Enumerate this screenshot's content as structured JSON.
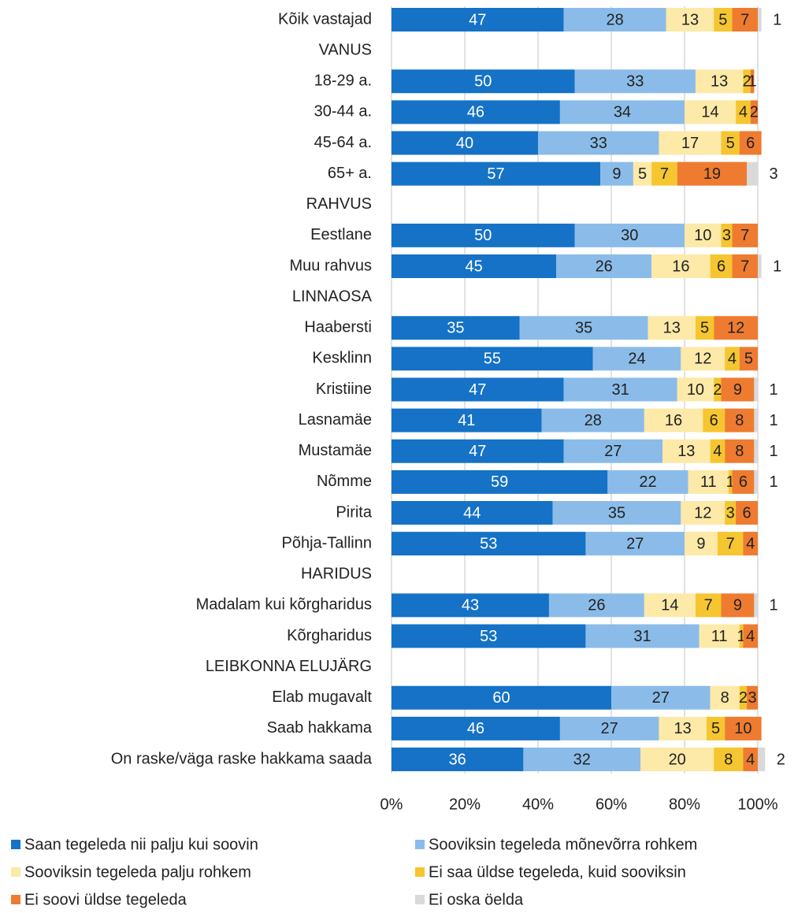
{
  "chart_data": {
    "type": "stacked_bar_horizontal",
    "categories": [
      "Kõik vastajad",
      "VANUS",
      "18-29 a.",
      "30-44 a.",
      "45-64 a.",
      "65+ a.",
      "RAHVUS",
      "Eestlane",
      "Muu rahvus",
      "LINNAOSA",
      "Haabersti",
      "Kesklinn",
      "Kristiine",
      "Lasnamäe",
      "Mustamäe",
      "Nõmme",
      "Pirita",
      "Põhja-Tallinn",
      "HARIDUS",
      "Madalam kui kõrgharidus",
      "Kõrgharidus",
      "LEIBKONNA ELUJÄRG",
      "Elab mugavalt",
      "Saab hakkama",
      "On raske/väga raske hakkama saada"
    ],
    "series": [
      {
        "name": "Saan tegeleda nii palju kui soovin",
        "color": "#1572c6",
        "values": [
          47,
          null,
          50,
          46,
          40,
          57,
          null,
          50,
          45,
          null,
          35,
          55,
          47,
          41,
          47,
          59,
          44,
          53,
          null,
          43,
          53,
          null,
          60,
          46,
          36
        ]
      },
      {
        "name": "Sooviksin tegeleda mõnevõrra rohkem",
        "color": "#8bbce9",
        "values": [
          28,
          null,
          33,
          34,
          33,
          9,
          null,
          30,
          26,
          null,
          35,
          24,
          31,
          28,
          27,
          22,
          35,
          27,
          null,
          26,
          31,
          null,
          27,
          27,
          32
        ]
      },
      {
        "name": "Sooviksin tegeleda palju rohkem",
        "color": "#fde9a8",
        "values": [
          13,
          null,
          13,
          14,
          17,
          5,
          null,
          10,
          16,
          null,
          13,
          12,
          10,
          16,
          13,
          11,
          12,
          9,
          null,
          14,
          11,
          null,
          8,
          13,
          20
        ]
      },
      {
        "name": "Ei saa üldse tegeleda, kuid sooviksin",
        "color": "#f5c630",
        "values": [
          5,
          null,
          2,
          4,
          5,
          7,
          null,
          3,
          6,
          null,
          5,
          4,
          2,
          6,
          4,
          1,
          3,
          7,
          null,
          7,
          1,
          null,
          2,
          5,
          8
        ]
      },
      {
        "name": "Ei soovi üldse tegeleda",
        "color": "#ee7b30",
        "values": [
          7,
          null,
          1,
          2,
          6,
          19,
          null,
          7,
          7,
          null,
          12,
          5,
          9,
          8,
          8,
          6,
          6,
          4,
          null,
          9,
          4,
          null,
          3,
          10,
          4
        ]
      },
      {
        "name": "Ei oska öelda",
        "color": "#d9d9d9",
        "values": [
          1,
          null,
          null,
          null,
          null,
          3,
          null,
          null,
          1,
          null,
          null,
          null,
          1,
          1,
          1,
          1,
          null,
          null,
          null,
          1,
          null,
          null,
          null,
          null,
          2
        ]
      }
    ],
    "xlim": [
      0,
      100
    ],
    "xticks": [
      {
        "value": 0,
        "label": "0%"
      },
      {
        "value": 20,
        "label": "20%"
      },
      {
        "value": 40,
        "label": "40%"
      },
      {
        "value": 60,
        "label": "60%"
      },
      {
        "value": 80,
        "label": "80%"
      },
      {
        "value": 100,
        "label": "100%"
      }
    ],
    "grid": true
  }
}
